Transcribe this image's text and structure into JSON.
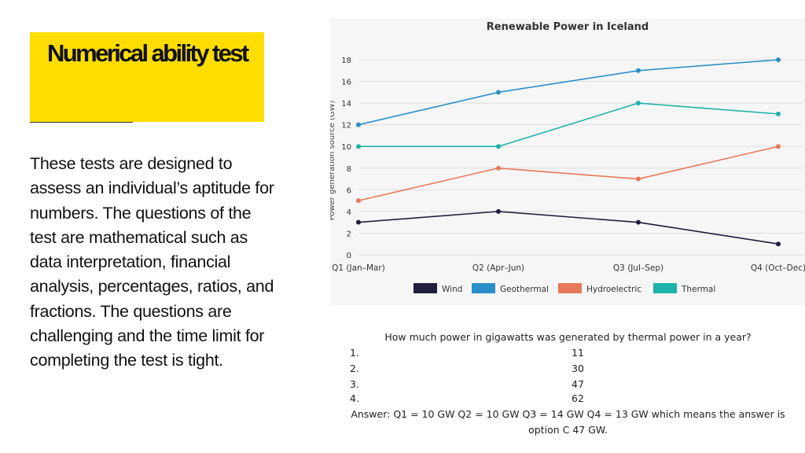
{
  "slide": {
    "heading": "Numerical ability test",
    "description": "These tests are designed to assess an individual’s aptitude for numbers. The questions of the test are mathematical such as data interpretation, financial analysis, percentages, ratios, and fractions. The questions are challenging and the time limit for completing the test is tight."
  },
  "question": {
    "prompt": "How much power in gigawatts was generated by thermal power in a year?",
    "options": [
      {
        "number": "1.",
        "value": "11"
      },
      {
        "number": "2.",
        "value": "30"
      },
      {
        "number": "3.",
        "value": "47"
      },
      {
        "number": "4.",
        "value": "62"
      }
    ],
    "answer": "Answer: Q1 = 10 GW Q2 = 10 GW Q3 = 14 GW Q4 = 13 GW which means the answer is option C 47 GW."
  },
  "chart_data": {
    "type": "line",
    "title": "Renewable Power in Iceland",
    "ylabel": "Power generation source (GW)",
    "xlabel": "",
    "categories": [
      "Q1 (Jan–Mar)",
      "Q2 (Apr–Jun)",
      "Q3 (Jul–Sep)",
      "Q4 (Oct–Dec)"
    ],
    "ylim": [
      0,
      18
    ],
    "yticks": [
      0,
      2,
      4,
      6,
      8,
      10,
      12,
      14,
      16,
      18
    ],
    "grid": true,
    "legend_position": "bottom",
    "series": [
      {
        "name": "Wind",
        "color": "#1f1f3d",
        "values": [
          3,
          4,
          3,
          1
        ]
      },
      {
        "name": "Geothermal",
        "color": "#2a8fc8",
        "values": [
          12,
          15,
          17,
          18
        ]
      },
      {
        "name": "Hydroelectric",
        "color": "#e8795a",
        "values": [
          5,
          8,
          7,
          10
        ]
      },
      {
        "name": "Thermal",
        "color": "#1fb3ad",
        "values": [
          10,
          10,
          14,
          13
        ]
      }
    ]
  }
}
